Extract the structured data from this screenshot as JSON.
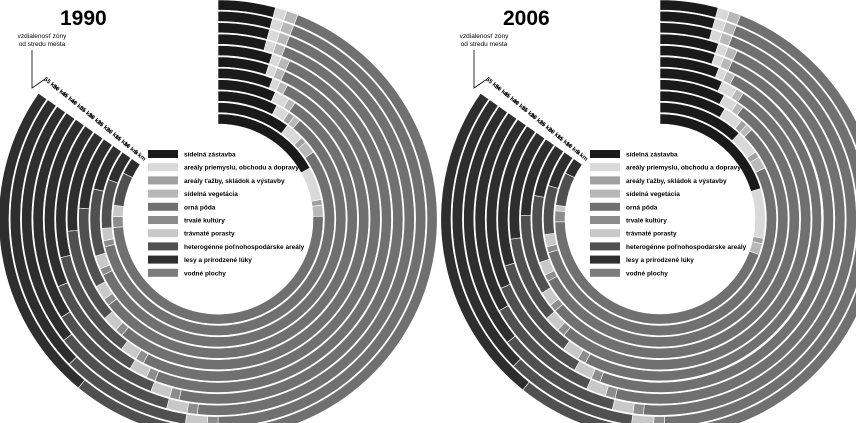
{
  "chart_data": {
    "type": "radial-stacked-rings",
    "zones": [
      "5 km",
      "10 km",
      "15 km",
      "20 km",
      "25 km",
      "30 km",
      "35 km",
      "40 km",
      "45 km",
      "50 km",
      "55 km"
    ],
    "zone_axis_title": [
      "vzdialenosť zóny",
      "od stredu mesta"
    ],
    "categories": [
      {
        "name": "sídelná zástavba",
        "color": "#1a1a1a"
      },
      {
        "name": "areály priemyslu, obchodu a dopravy",
        "color": "#d9d9d9"
      },
      {
        "name": "areály ťažby, skládok a výstavby",
        "color": "#a0a0a0"
      },
      {
        "name": "sídelná vegetácia",
        "color": "#b8b8b8"
      },
      {
        "name": "orná pôda",
        "color": "#707070"
      },
      {
        "name": "trvalé kultúry",
        "color": "#8c8c8c"
      },
      {
        "name": "trávnaté porasty",
        "color": "#c8c8c8"
      },
      {
        "name": "heterogénne poľnohospodárske areály",
        "color": "#505050"
      },
      {
        "name": "lesy a prírodzené lúky",
        "color": "#2e2e2e"
      },
      {
        "name": "vodné plochy",
        "color": "#7c7c7c"
      }
    ],
    "panels": [
      {
        "year": "1990",
        "shares_percent_by_zone": [
          [
            20,
            6,
            1,
            2,
            58,
            2,
            2,
            6,
            3,
            0
          ],
          [
            12,
            3,
            1,
            2,
            66,
            1,
            2,
            8,
            5,
            0
          ],
          [
            9,
            2,
            1,
            1,
            67,
            1,
            2,
            10,
            7,
            0
          ],
          [
            8,
            2,
            0,
            1,
            65,
            1,
            2,
            11,
            10,
            0
          ],
          [
            7,
            1,
            0,
            1,
            63,
            1,
            2,
            12,
            13,
            0
          ],
          [
            6,
            1,
            0,
            1,
            60,
            1,
            2,
            13,
            16,
            0
          ],
          [
            6,
            1,
            0,
            1,
            58,
            1,
            2,
            12,
            19,
            0
          ],
          [
            5,
            1,
            0,
            1,
            56,
            1,
            2,
            12,
            22,
            0
          ],
          [
            5,
            1,
            0,
            1,
            54,
            1,
            2,
            12,
            24,
            0
          ],
          [
            5,
            1,
            0,
            1,
            52,
            1,
            2,
            12,
            26,
            0
          ],
          [
            5,
            1,
            0,
            1,
            50,
            1,
            2,
            12,
            28,
            0
          ]
        ]
      },
      {
        "year": "2006",
        "shares_percent_by_zone": [
          [
            24,
            9,
            1,
            2,
            52,
            2,
            1,
            6,
            3,
            0
          ],
          [
            14,
            4,
            1,
            2,
            62,
            1,
            2,
            8,
            6,
            0
          ],
          [
            10,
            3,
            1,
            1,
            64,
            1,
            2,
            10,
            8,
            0
          ],
          [
            9,
            2,
            0,
            1,
            63,
            1,
            2,
            11,
            11,
            0
          ],
          [
            8,
            2,
            0,
            1,
            61,
            1,
            2,
            11,
            14,
            0
          ],
          [
            7,
            1,
            0,
            1,
            59,
            1,
            2,
            12,
            17,
            0
          ],
          [
            6,
            1,
            0,
            1,
            57,
            1,
            2,
            12,
            19,
            0
          ],
          [
            6,
            1,
            0,
            1,
            55,
            1,
            2,
            12,
            21,
            0
          ],
          [
            5,
            1,
            0,
            1,
            53,
            1,
            2,
            12,
            24,
            0
          ],
          [
            5,
            1,
            0,
            1,
            51,
            1,
            2,
            12,
            26,
            0
          ],
          [
            5,
            1,
            0,
            1,
            49,
            1,
            2,
            12,
            28,
            0
          ]
        ]
      }
    ]
  }
}
